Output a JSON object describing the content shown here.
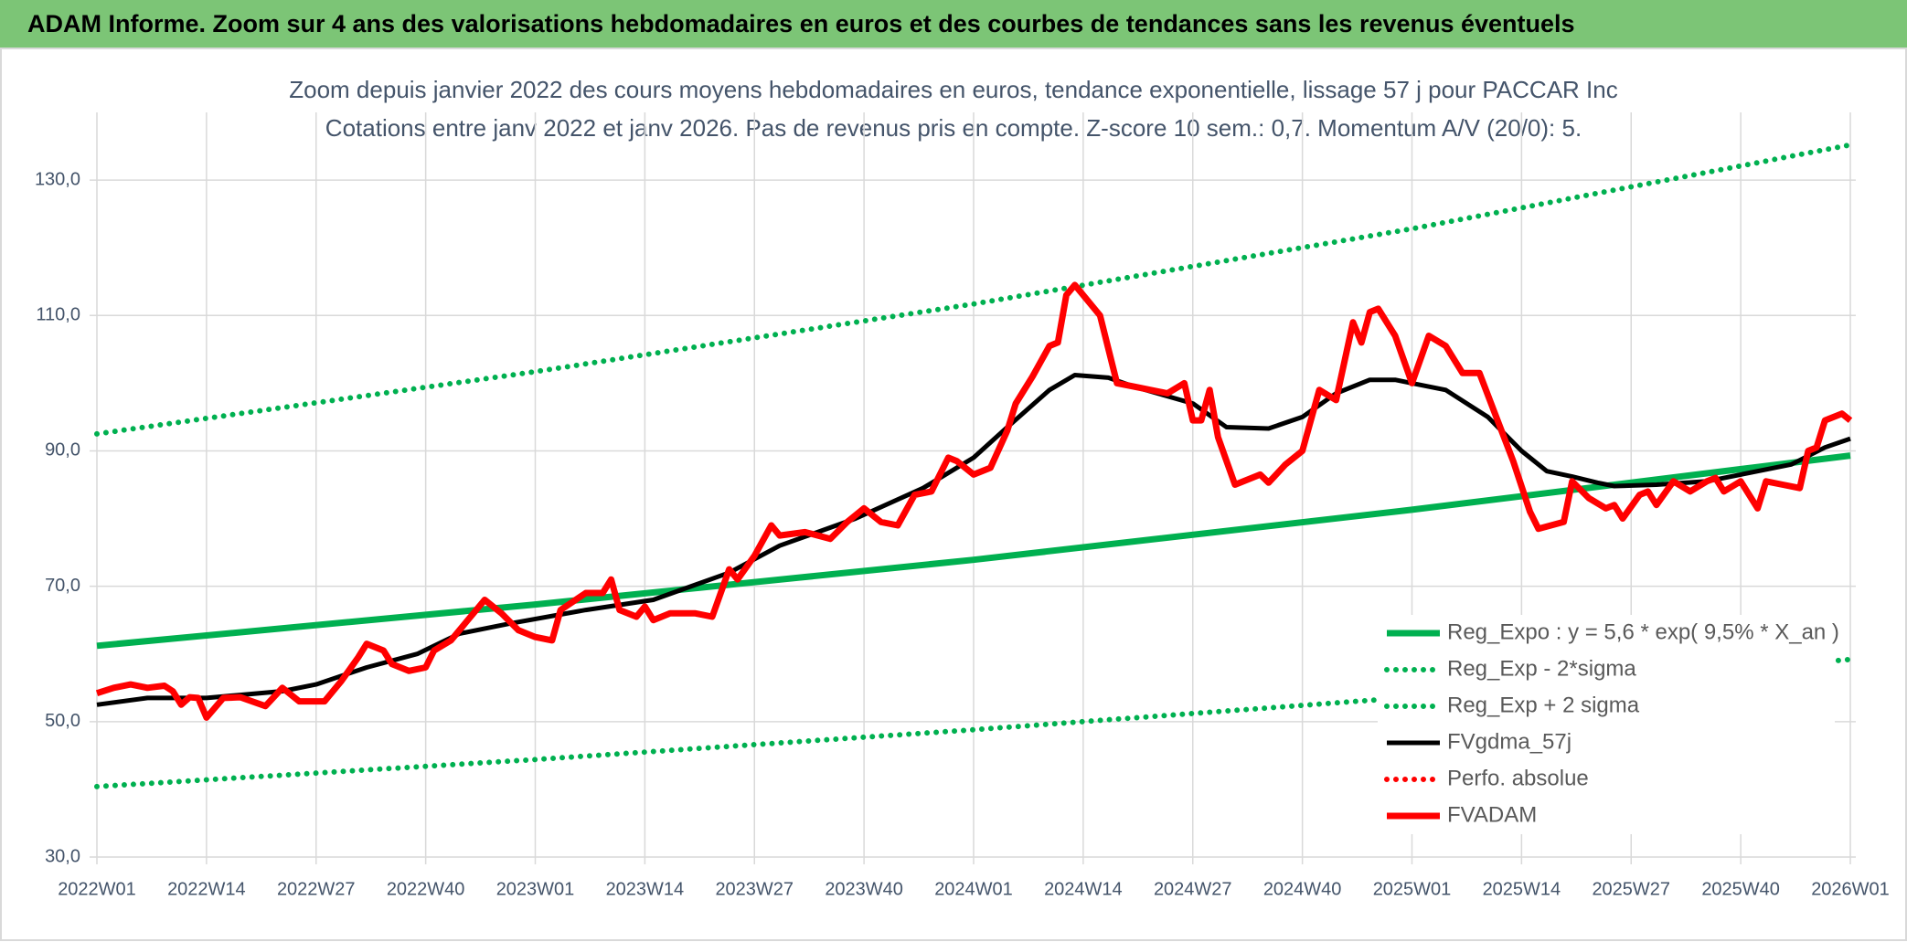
{
  "chart_data": {
    "type": "line",
    "header": "ADAM Informe. Zoom sur 4 ans des valorisations hebdomadaires en euros et des courbes de tendances sans les revenus éventuels",
    "title": "Zoom depuis janvier 2022 des cours moyens hebdomadaires en euros, tendance exponentielle, lissage 57 j pour PACCAR Inc",
    "subtitle": "Cotations entre janv 2022 et janv 2026. Pas de revenus pris en compte. Z-score 10 sem.: 0,7. Momentum A/V (20/0): 5.",
    "xlim": [
      0,
      208
    ],
    "xticks": [
      {
        "value": 0,
        "label": "2022W01"
      },
      {
        "value": 13,
        "label": "2022W14"
      },
      {
        "value": 26,
        "label": "2022W27"
      },
      {
        "value": 39,
        "label": "2022W40"
      },
      {
        "value": 52,
        "label": "2023W01"
      },
      {
        "value": 65,
        "label": "2023W14"
      },
      {
        "value": 78,
        "label": "2023W27"
      },
      {
        "value": 91,
        "label": "2023W40"
      },
      {
        "value": 104,
        "label": "2024W01"
      },
      {
        "value": 117,
        "label": "2024W14"
      },
      {
        "value": 130,
        "label": "2024W27"
      },
      {
        "value": 143,
        "label": "2024W40"
      },
      {
        "value": 156,
        "label": "2025W01"
      },
      {
        "value": 169,
        "label": "2025W14"
      },
      {
        "value": 182,
        "label": "2025W27"
      },
      {
        "value": 195,
        "label": "2025W40"
      },
      {
        "value": 208,
        "label": "2026W01"
      }
    ],
    "ylim": [
      30,
      140
    ],
    "yticks": [
      {
        "value": 30,
        "label": "30,0"
      },
      {
        "value": 50,
        "label": "50,0"
      },
      {
        "value": 70,
        "label": "70,0"
      },
      {
        "value": 90,
        "label": "90,0"
      },
      {
        "value": 110,
        "label": "110,0"
      },
      {
        "value": 130,
        "label": "130,0"
      }
    ],
    "grid": true,
    "series": [
      {
        "name": "Reg_Expo : y = 5,6 * exp( 9,5% *  X_an )",
        "color": "#00b050",
        "style": "solid",
        "x": [
          0,
          52,
          104,
          156,
          208
        ],
        "values": [
          61.2,
          67.3,
          73.9,
          81.3,
          89.3
        ]
      },
      {
        "name": "Reg_Exp - 2*sigma",
        "color": "#00b050",
        "style": "dotted",
        "x": [
          0,
          52,
          104,
          156,
          208
        ],
        "values": [
          40.4,
          44.4,
          48.8,
          53.6,
          59.2
        ]
      },
      {
        "name": "Reg_Exp + 2 sigma",
        "color": "#00b050",
        "style": "dotted",
        "x": [
          0,
          52,
          104,
          156,
          208
        ],
        "values": [
          92.5,
          101.7,
          111.7,
          122.8,
          135.2
        ]
      },
      {
        "name": "FVgdma_57j",
        "color": "#000000",
        "style": "thin",
        "x": [
          0,
          6,
          13,
          22,
          26,
          32,
          38,
          43,
          49,
          58,
          66,
          75,
          81,
          90,
          98,
          104,
          108,
          113,
          116,
          120,
          123,
          130,
          134,
          139,
          143,
          147,
          151,
          154,
          156,
          160,
          165,
          169,
          172,
          175,
          178,
          180,
          185,
          191,
          195,
          201,
          205,
          208
        ],
        "values": [
          52.5,
          53.5,
          53.5,
          54.5,
          55.5,
          58,
          60,
          63,
          64.5,
          66.5,
          68,
          72,
          76,
          80,
          84.5,
          89,
          93.5,
          99,
          101.2,
          100.8,
          99.5,
          97,
          93.5,
          93.3,
          95,
          98.5,
          100.5,
          100.5,
          100,
          99,
          95,
          90,
          87,
          86.2,
          85.3,
          84.8,
          85,
          85.5,
          86.5,
          88,
          90.5,
          91.8
        ]
      },
      {
        "name": "Perfo. absolue",
        "color": "#ff0000",
        "style": "dotted",
        "x": [],
        "values": []
      },
      {
        "name": "FVADAM",
        "color": "#ff0000",
        "style": "solid",
        "x": [
          0,
          2,
          4,
          6,
          8,
          9,
          10,
          11,
          12,
          13,
          15,
          17,
          20,
          22,
          24,
          27,
          29,
          31,
          32,
          34,
          35,
          37,
          39,
          40,
          42,
          44,
          46,
          48,
          50,
          52,
          54,
          55,
          58,
          60,
          61,
          62,
          64,
          65,
          66,
          68,
          71,
          73,
          75,
          76,
          78,
          80,
          81,
          84,
          87,
          89,
          91,
          93,
          95,
          97,
          99,
          101,
          102,
          104,
          106,
          108,
          109,
          111,
          113,
          114,
          115,
          116,
          119,
          121,
          123,
          127,
          129,
          130,
          131,
          132,
          133,
          135,
          138,
          139,
          141,
          143,
          145,
          147,
          149,
          150,
          151,
          152,
          154,
          156,
          158,
          160,
          162,
          164,
          166,
          168,
          170,
          171,
          174,
          175,
          177,
          179,
          180,
          181,
          183,
          184,
          185,
          187,
          189,
          191,
          192,
          193,
          195,
          197,
          198,
          200,
          202,
          203,
          204,
          205,
          207,
          208
        ],
        "values": [
          54.2,
          55,
          55.5,
          55,
          55.3,
          54.5,
          52.5,
          53.6,
          53.5,
          50.6,
          53.5,
          53.6,
          52.3,
          55,
          53,
          53,
          56,
          59.5,
          61.5,
          60.5,
          58.5,
          57.5,
          58,
          60.5,
          62,
          65,
          68,
          66,
          63.5,
          62.5,
          62,
          66.5,
          69,
          69,
          71,
          66.5,
          65.5,
          67,
          65,
          66,
          66,
          65.5,
          72.5,
          71,
          74.5,
          79,
          77.5,
          78,
          77,
          79.5,
          81.5,
          79.5,
          79,
          83.5,
          84,
          89,
          88.5,
          86.5,
          87.5,
          93,
          97,
          101,
          105.5,
          106,
          113,
          114.5,
          110,
          100,
          99.5,
          98.5,
          100,
          94.5,
          94.5,
          99,
          92,
          85,
          86.5,
          85.3,
          88,
          90,
          99,
          97.5,
          109,
          106,
          110.5,
          111,
          107,
          100,
          107,
          105.5,
          101.5,
          101.5,
          95,
          88.5,
          81,
          78.5,
          79.5,
          85.5,
          83,
          81.5,
          82,
          80,
          83.5,
          84,
          82,
          85.5,
          84,
          85.5,
          86,
          84,
          85.5,
          81.5,
          85.5,
          85,
          84.5,
          90,
          90.5,
          94.5,
          95.5,
          94.5
        ]
      }
    ]
  }
}
